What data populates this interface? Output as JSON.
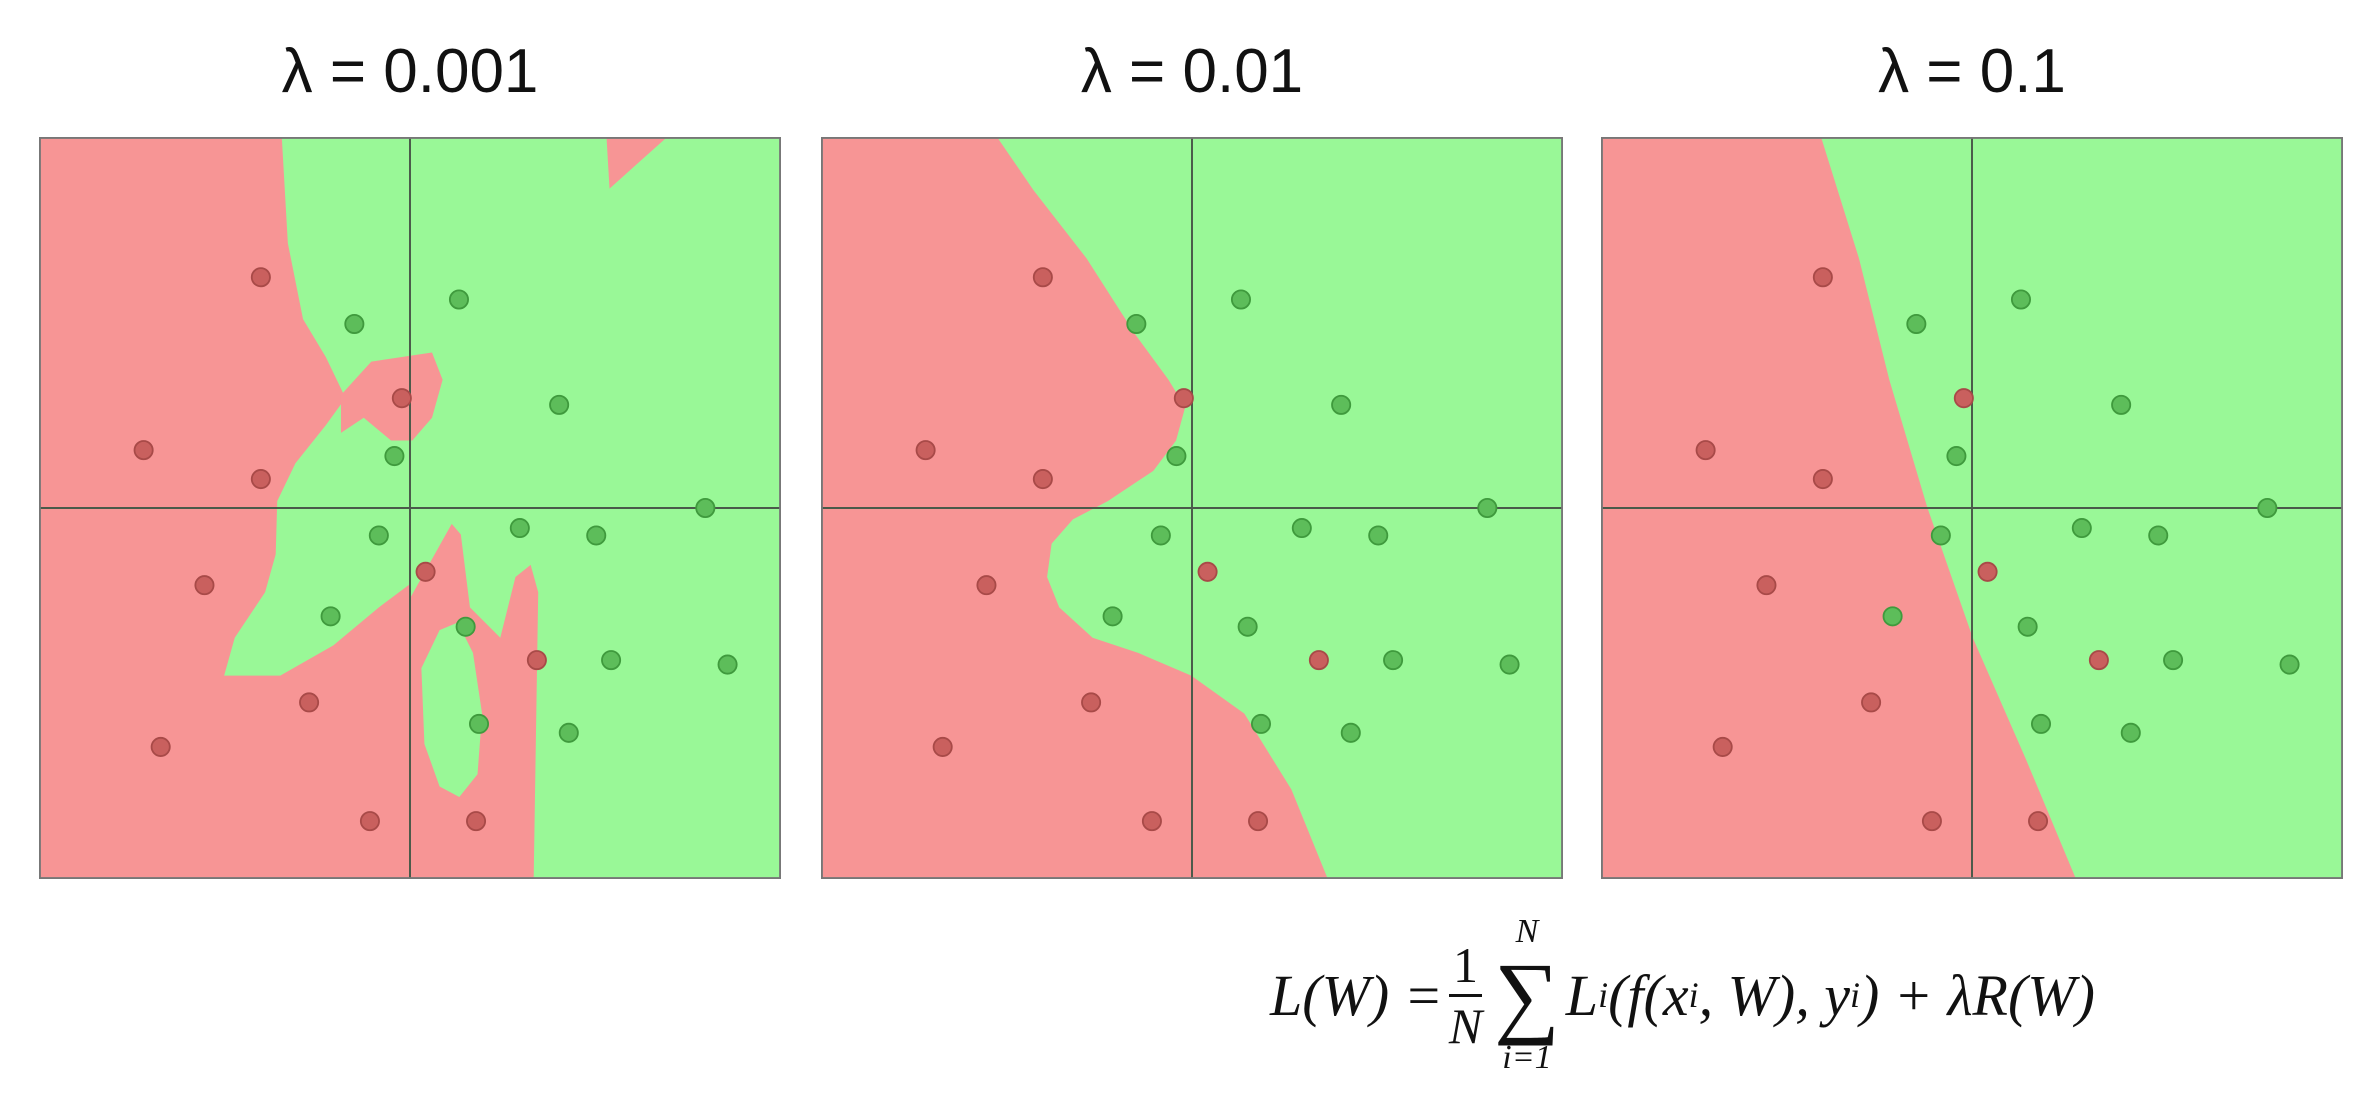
{
  "chart_data": [
    {
      "type": "scatter",
      "title": "λ = 0.001",
      "grid": false,
      "axes_lines": true,
      "region_colors": {
        "red": "#f79595",
        "green": "#99f897"
      }
    },
    {
      "type": "scatter",
      "title": "λ = 0.01",
      "grid": false,
      "axes_lines": true,
      "region_colors": {
        "red": "#f79595",
        "green": "#99f897"
      }
    },
    {
      "type": "scatter",
      "title": "λ = 0.1",
      "grid": false,
      "axes_lines": true,
      "region_colors": {
        "red": "#f79595",
        "green": "#99f897"
      }
    }
  ],
  "points": {
    "red": [
      [
        -2.01,
        3.11
      ],
      [
        -0.11,
        1.48
      ],
      [
        -3.59,
        0.78
      ],
      [
        -2.01,
        0.39
      ],
      [
        -2.77,
        -1.04
      ],
      [
        0.21,
        -0.86
      ],
      [
        -1.36,
        -2.62
      ],
      [
        -3.36,
        -3.22
      ],
      [
        -0.54,
        -4.22
      ],
      [
        0.89,
        -4.22
      ],
      [
        1.71,
        -2.05
      ]
    ],
    "green": [
      [
        -0.75,
        2.48
      ],
      [
        0.66,
        2.81
      ],
      [
        2.01,
        1.39
      ],
      [
        -0.21,
        0.7
      ],
      [
        3.98,
        0.0
      ],
      [
        -0.42,
        -0.37
      ],
      [
        1.48,
        -0.27
      ],
      [
        2.51,
        -0.37
      ],
      [
        -1.07,
        -1.46
      ],
      [
        0.75,
        -1.6
      ],
      [
        2.71,
        -2.05
      ],
      [
        4.28,
        -2.11
      ],
      [
        0.93,
        -2.91
      ],
      [
        2.14,
        -3.03
      ]
    ]
  },
  "colors": {
    "red_point": "#c9605e",
    "red_stroke": "#a84a48",
    "green_point": "#5dbd5a",
    "green_stroke": "#3f9a3d",
    "axis": "#4a5a4a",
    "frame": "#777777"
  },
  "formula": {
    "lhs": "L(W) =",
    "frac_num": "1",
    "frac_den": "N",
    "sum_sup": "N",
    "sum_sym": "∑",
    "sum_sub": "i=1",
    "term": "L",
    "term_sub": "i",
    "args_a": "(f(x",
    "args_a_sub": "i",
    "args_b": ", W), y",
    "args_b_sub": "i",
    "args_c": ") + λR(W)"
  }
}
